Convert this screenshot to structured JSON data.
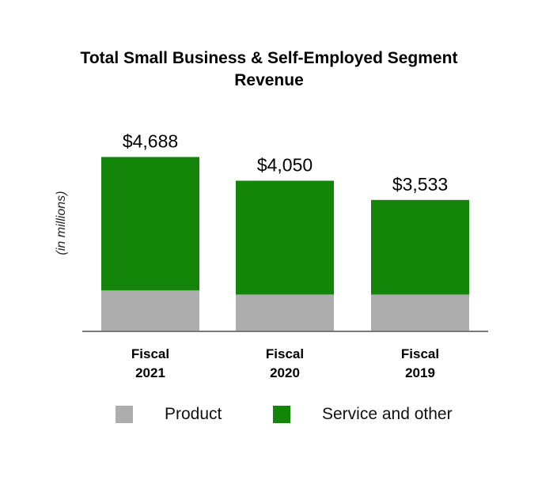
{
  "chart_data": {
    "type": "bar",
    "stacked": true,
    "title": "Total Small Business & Self-Employed Segment Revenue",
    "ylabel": "(in millions)",
    "xlabel": "",
    "categories": [
      {
        "line1": "Fiscal",
        "line2": "2021"
      },
      {
        "line1": "Fiscal",
        "line2": "2020"
      },
      {
        "line1": "Fiscal",
        "line2": "2019"
      }
    ],
    "series": [
      {
        "name": "Product",
        "color": "#adadad",
        "values": [
          1100,
          990,
          990
        ]
      },
      {
        "name": "Service and other",
        "color": "#138509",
        "values": [
          3588,
          3060,
          2543
        ]
      }
    ],
    "totals": [
      4688,
      4050,
      3533
    ],
    "total_labels": [
      "$4,688",
      "$4,050",
      "$3,533"
    ],
    "ylim": [
      0,
      5400
    ],
    "grid": false,
    "legend_position": "bottom"
  }
}
